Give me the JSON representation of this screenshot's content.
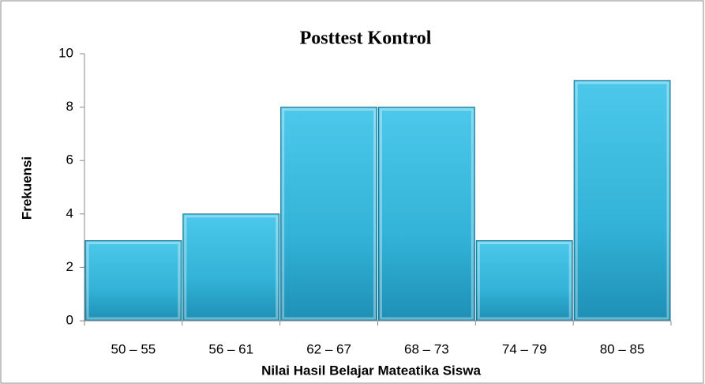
{
  "chart_data": {
    "type": "bar",
    "title": "Posttest Kontrol",
    "x_label": "Nilai Hasil Belajar Mateatika Siswa",
    "y_label": "Frekuensi",
    "categories": [
      "50 – 55",
      "56 – 61",
      "62 – 67",
      "68 – 73",
      "74 – 79",
      "80 – 85"
    ],
    "values": [
      3,
      4,
      8,
      8,
      3,
      9
    ],
    "color": "#3cbde0",
    "ylim": [
      0,
      10
    ],
    "yticks": [
      0,
      2,
      4,
      6,
      8,
      10
    ],
    "grid": false
  }
}
